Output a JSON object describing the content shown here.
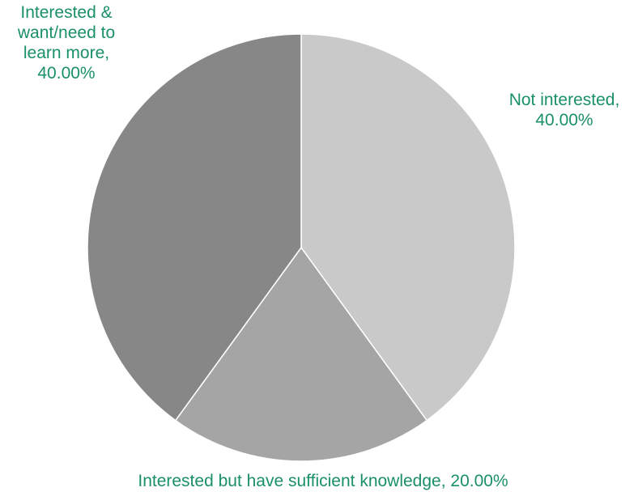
{
  "chart_data": {
    "type": "pie",
    "title": "",
    "slices": [
      {
        "name": "Not interested",
        "value": 40.0,
        "label_lines": [
          "Not interested,",
          "40.00%"
        ],
        "color": "#c9c9c9"
      },
      {
        "name": "Interested but have sufficient knowledge",
        "value": 20.0,
        "label_lines": [
          "Interested but have sufficient knowledge, 20.00%"
        ],
        "color": "#a5a5a5"
      },
      {
        "name": "Interested & want/need to learn more",
        "value": 40.0,
        "label_lines": [
          "Interested &",
          "want/need to",
          "learn more,",
          "40.00%"
        ],
        "color": "#878787"
      }
    ],
    "label_color": "#1a9068",
    "slice_border_color": "#ffffff",
    "legend": "none"
  }
}
